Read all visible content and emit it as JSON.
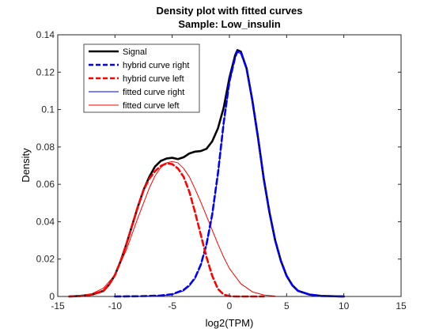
{
  "chart_data": {
    "type": "line",
    "title": "Density plot with fitted curves",
    "subtitle": "Sample: Low_insulin",
    "xlabel": "log2(TPM)",
    "ylabel": "Density",
    "xlim": [
      -15,
      15
    ],
    "ylim": [
      0,
      0.14
    ],
    "xticks": [
      -15,
      -10,
      -5,
      0,
      5,
      10,
      15
    ],
    "yticks": [
      0,
      0.02,
      0.04,
      0.06,
      0.08,
      0.1,
      0.12,
      0.14
    ],
    "xtick_labels": [
      "-15",
      "-10",
      "-5",
      "0",
      "5",
      "10",
      "15"
    ],
    "ytick_labels": [
      "0",
      "0.02",
      "0.04",
      "0.06",
      "0.08",
      "0.1",
      "0.12",
      "0.14"
    ],
    "grid": false,
    "legend_position": "top-left",
    "series": [
      {
        "name": "Signal",
        "color": "#000000",
        "style": "solid-thick",
        "x": [
          -14,
          -13,
          -12,
          -11,
          -10.5,
          -10,
          -9.5,
          -9,
          -8.5,
          -8,
          -7.5,
          -7,
          -6.5,
          -6,
          -5.5,
          -5,
          -4.5,
          -4,
          -3.5,
          -3,
          -2.5,
          -2,
          -1.5,
          -1,
          -0.5,
          0,
          0.5,
          0.7,
          1,
          1.5,
          2,
          2.5,
          3,
          3.5,
          4,
          4.5,
          5,
          5.5,
          6,
          7,
          8,
          9,
          10
        ],
        "y": [
          0,
          0.0003,
          0.001,
          0.003,
          0.0065,
          0.0115,
          0.019,
          0.028,
          0.038,
          0.048,
          0.057,
          0.064,
          0.0695,
          0.0725,
          0.0738,
          0.0742,
          0.0735,
          0.0745,
          0.0765,
          0.0775,
          0.0778,
          0.079,
          0.083,
          0.09,
          0.101,
          0.117,
          0.129,
          0.1318,
          0.131,
          0.122,
          0.105,
          0.085,
          0.063,
          0.045,
          0.03,
          0.019,
          0.011,
          0.006,
          0.003,
          0.001,
          0.0003,
          0.0001,
          0
        ]
      },
      {
        "name": "hybrid curve right",
        "color": "#0000ff",
        "style": "dashed-thick",
        "x": [
          -10,
          -8,
          -6,
          -5,
          -4,
          -3.5,
          -3,
          -2.5,
          -2,
          -1.5,
          -1,
          -0.5,
          0,
          0.5,
          0.7,
          1,
          1.5,
          2,
          2.5,
          3,
          3.5,
          4,
          4.5,
          5,
          5.5,
          6,
          7,
          8,
          10
        ],
        "y": [
          0,
          0.0001,
          0.0005,
          0.0012,
          0.0035,
          0.006,
          0.01,
          0.017,
          0.028,
          0.044,
          0.066,
          0.093,
          0.115,
          0.128,
          0.1312,
          0.1305,
          0.122,
          0.105,
          0.085,
          0.063,
          0.045,
          0.03,
          0.019,
          0.011,
          0.006,
          0.003,
          0.001,
          0.0003,
          0
        ]
      },
      {
        "name": "hybrid curve left",
        "color": "#ff0000",
        "style": "dashed-thick",
        "x": [
          -14,
          -13,
          -12,
          -11,
          -10.5,
          -10,
          -9.5,
          -9,
          -8.5,
          -8,
          -7.5,
          -7,
          -6.5,
          -6,
          -5.5,
          -5,
          -4.5,
          -4,
          -3.5,
          -3,
          -2.5,
          -2,
          -1.5,
          -1,
          -0.5,
          0,
          0.5,
          1,
          2,
          3
        ],
        "y": [
          0,
          0.0003,
          0.001,
          0.003,
          0.0065,
          0.0115,
          0.019,
          0.028,
          0.038,
          0.048,
          0.057,
          0.063,
          0.067,
          0.0698,
          0.0712,
          0.0708,
          0.0685,
          0.064,
          0.056,
          0.045,
          0.033,
          0.021,
          0.011,
          0.004,
          0.001,
          0.0002,
          0,
          0,
          0,
          0
        ]
      },
      {
        "name": "fitted curve right",
        "color": "#0000ff",
        "style": "solid-thin",
        "x": [
          -10,
          -8,
          -6,
          -5,
          -4,
          -3.5,
          -3,
          -2.5,
          -2,
          -1.5,
          -1,
          -0.5,
          0,
          0.5,
          0.7,
          1,
          1.5,
          2,
          2.5,
          3,
          3.5,
          4,
          4.5,
          5,
          5.5,
          6,
          7,
          8,
          10
        ],
        "y": [
          0,
          0.0001,
          0.0004,
          0.001,
          0.003,
          0.0055,
          0.0095,
          0.0165,
          0.0275,
          0.043,
          0.065,
          0.092,
          0.114,
          0.1275,
          0.1306,
          0.13,
          0.1215,
          0.1045,
          0.0845,
          0.0625,
          0.0445,
          0.0295,
          0.0185,
          0.0105,
          0.0055,
          0.0028,
          0.0009,
          0.0002,
          0
        ]
      },
      {
        "name": "fitted curve left",
        "color": "#ff0000",
        "style": "solid-thin",
        "x": [
          -14,
          -13,
          -12,
          -11,
          -10,
          -9,
          -8,
          -7,
          -6.5,
          -6,
          -5.5,
          -5,
          -4.5,
          -4,
          -3.5,
          -3,
          -2.5,
          -2,
          -1.5,
          -1,
          -0.5,
          0,
          1,
          2,
          3,
          4
        ],
        "y": [
          0,
          0.0004,
          0.0015,
          0.0045,
          0.0115,
          0.025,
          0.042,
          0.058,
          0.0645,
          0.069,
          0.0715,
          0.0722,
          0.0715,
          0.0685,
          0.064,
          0.0575,
          0.0505,
          0.043,
          0.0355,
          0.028,
          0.021,
          0.015,
          0.0068,
          0.0025,
          0.0008,
          0.0002
        ]
      }
    ]
  }
}
